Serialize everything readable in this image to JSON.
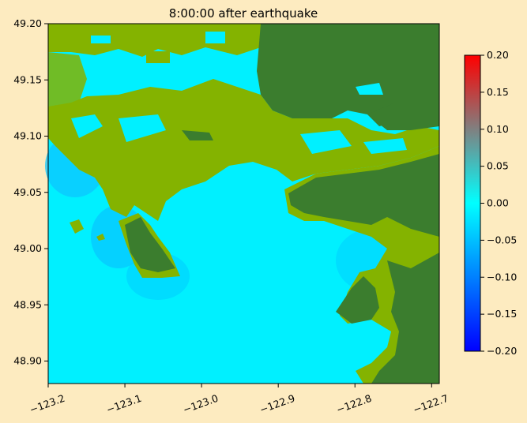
{
  "chart_data": {
    "type": "heatmap",
    "title": "8:00:00 after earthquake",
    "xlabel": "",
    "ylabel": "",
    "xlim": [
      -123.2,
      -122.69
    ],
    "ylim": [
      48.88,
      49.2
    ],
    "xticks": [
      -123.2,
      -123.1,
      -123.0,
      -122.9,
      -122.8,
      -122.7
    ],
    "xtick_labels": [
      "−123.2",
      "−123.1",
      "−123.0",
      "−122.9",
      "−122.8",
      "−122.7"
    ],
    "yticks": [
      48.9,
      48.95,
      49.0,
      49.05,
      49.1,
      49.15,
      49.2
    ],
    "ytick_labels": [
      "48.90",
      "48.95",
      "49.00",
      "49.05",
      "49.10",
      "49.15",
      "49.20"
    ],
    "colorbar": {
      "range": [
        -0.2,
        0.2
      ],
      "ticks": [
        -0.2,
        -0.15,
        -0.1,
        -0.05,
        0.0,
        0.05,
        0.1,
        0.15,
        0.2
      ],
      "tick_labels": [
        "−0.20",
        "−0.15",
        "−0.10",
        "−0.05",
        "0.00",
        "0.05",
        "0.10",
        "0.15",
        "0.20"
      ],
      "colors": [
        "#0000ff",
        "#00aaff",
        "#00ffff",
        "#808080",
        "#ff0000"
      ]
    },
    "land_colors": {
      "lowland": "#84b300",
      "highland": "#3b7d2e"
    },
    "water_color": "#00f0ff"
  }
}
